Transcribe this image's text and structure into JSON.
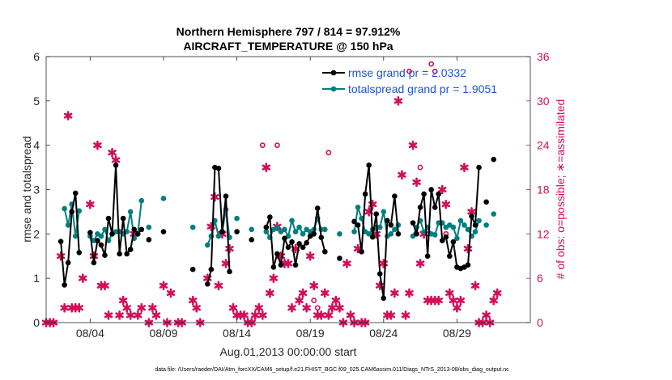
{
  "chart_data": {
    "type": "line",
    "title_line1": "Northern Hemisphere 797 / 814 = 97.912%",
    "title_line2": "AIRCRAFT_TEMPERATURE @ 150 hPa",
    "xlabel": "Aug.01,2013 00:00:00 start",
    "ylabel_left": "rmse and totalspread",
    "ylabel_right": "# of obs: o=possible; ∗=assimilated",
    "footer": "data file: /Users/raeder/DAI/Atm_forcXX/CAM6_setup/f.e21.FHIST_BGC.f09_025.CAM6assim.011/Diags_NTrS_2013-08/obs_diag_output.nc",
    "xlim": [
      1,
      34
    ],
    "ylim_left": [
      0,
      6
    ],
    "ylim_right": [
      0,
      36
    ],
    "x_ticks": [
      4,
      9,
      14,
      19,
      24,
      29
    ],
    "x_tick_labels": [
      "08/04",
      "08/09",
      "08/14",
      "08/19",
      "08/24",
      "08/29"
    ],
    "y_left_ticks": [
      0,
      1,
      2,
      3,
      4,
      5,
      6
    ],
    "y_right_ticks": [
      0,
      6,
      12,
      18,
      24,
      30,
      36
    ],
    "colors": {
      "rmse": "#000000",
      "spread": "#007f7f",
      "obs": "#d40e5a",
      "axis_right": "#d40e5a",
      "legend_text": "#1a55d6"
    },
    "legend": [
      {
        "name": "rmse grand pr = 2.0332",
        "color": "#000000"
      },
      {
        "name": "totalspread grand pr = 1.9051",
        "color": "#007f7f"
      }
    ],
    "series": [
      {
        "name": "rmse",
        "x": [
          2,
          2.25,
          2.5,
          2.75,
          3,
          3.25,
          4,
          4.25,
          4.5,
          4.75,
          5,
          5.25,
          5.5,
          5.75,
          6,
          6.25,
          6.5,
          6.75,
          7,
          7.25,
          7.5,
          8,
          9,
          11,
          12,
          12.25,
          12.5,
          12.75,
          13,
          13.25,
          13.5,
          14,
          15,
          16,
          16.25,
          16.5,
          16.75,
          17,
          17.25,
          17.5,
          17.75,
          18,
          18.25,
          18.5,
          18.75,
          19,
          19.25,
          19.5,
          19.75,
          20,
          21,
          22,
          22.25,
          22.5,
          22.75,
          23,
          23.25,
          23.5,
          23.75,
          24,
          24.25,
          24.5,
          24.75,
          25,
          26,
          26.25,
          26.5,
          26.75,
          27,
          27.25,
          27.5,
          27.75,
          28,
          28.25,
          28.5,
          28.75,
          29,
          29.25,
          29.5,
          29.75,
          30,
          30.25,
          30.5,
          31,
          31.5
        ],
        "y": [
          1.83,
          0.85,
          1.35,
          2.5,
          2.92,
          1.58,
          2.03,
          1.35,
          1.85,
          1.75,
          1.52,
          2.35,
          2.0,
          3.55,
          1.55,
          2.35,
          1.55,
          1.65,
          2.1,
          2.0,
          2.1,
          1.87,
          2.05,
          1.2,
          0.87,
          1.2,
          3.5,
          3.48,
          2.05,
          2.85,
          1.15,
          2.05,
          1.87,
          2.15,
          2.38,
          1.25,
          1.55,
          1.3,
          1.9,
          1.7,
          1.82,
          1.3,
          1.78,
          1.7,
          1.8,
          1.95,
          2.0,
          2.58,
          1.92,
          1.6,
          1.45,
          2.28,
          2.2,
          1.6,
          2.9,
          3.55,
          1.93,
          2.45,
          1.1,
          0.55,
          2.3,
          2.2,
          2.85,
          2.0,
          2.25,
          2.0,
          2.6,
          2.9,
          1.5,
          3.0,
          2.6,
          2.9,
          1.85,
          1.93,
          1.5,
          1.82,
          1.25,
          1.22,
          1.25,
          1.3,
          2.4,
          2.2,
          3.5,
          2.72,
          3.68
        ]
      },
      {
        "name": "totalspread",
        "x": [
          2.25,
          2.5,
          2.75,
          3,
          3.25,
          4,
          4.25,
          4.5,
          4.75,
          5,
          5.25,
          5.5,
          5.75,
          6,
          6.25,
          6.5,
          6.75,
          7,
          7.25,
          7.5,
          8,
          9,
          11,
          12,
          12.25,
          12.5,
          12.75,
          13,
          13.25,
          13.5,
          14,
          15,
          16,
          16.25,
          16.5,
          16.75,
          17,
          17.25,
          17.5,
          17.75,
          18,
          18.25,
          18.5,
          18.75,
          19,
          19.25,
          19.5,
          19.75,
          20,
          21,
          22,
          22.25,
          22.5,
          22.75,
          23,
          23.25,
          23.5,
          23.75,
          24,
          24.25,
          24.5,
          24.75,
          25,
          26,
          26.25,
          26.5,
          26.75,
          27,
          27.25,
          27.5,
          27.75,
          28,
          28.25,
          28.5,
          28.75,
          29,
          29.25,
          29.5,
          29.75,
          30,
          30.25,
          30.5,
          31,
          31.5
        ],
        "y": [
          2.57,
          2.2,
          2.67,
          1.95,
          2.52,
          1.95,
          1.85,
          2.0,
          1.95,
          2.1,
          1.85,
          2.0,
          2.05,
          2.05,
          2.0,
          2.05,
          2.5,
          1.9,
          2.0,
          2.75,
          2.15,
          2.8,
          2.15,
          1.75,
          1.95,
          2.3,
          1.95,
          2.05,
          2.55,
          1.92,
          2.35,
          2.1,
          2.05,
          1.92,
          2.1,
          2.15,
          2.05,
          2.1,
          1.95,
          2.3,
          2.05,
          2.15,
          2.0,
          2.1,
          2.05,
          2.1,
          2.35,
          2.1,
          2.1,
          2.0,
          2.05,
          2.6,
          2.35,
          2.05,
          2.0,
          2.1,
          2.15,
          2.15,
          2.5,
          1.95,
          2.0,
          2.1,
          2.2,
          1.95,
          2.15,
          2.3,
          2.05,
          2.15,
          2.0,
          1.98,
          2.25,
          2.25,
          2.15,
          2.2,
          2.15,
          1.9,
          2.3,
          2.2,
          2.1,
          1.95,
          2.05,
          2.3,
          2.2,
          2.45
        ]
      },
      {
        "name": "obs_assimilated",
        "x": [
          1,
          1.25,
          1.5,
          2,
          2.25,
          2.5,
          2.75,
          3,
          3.25,
          3.5,
          4,
          4.25,
          4.5,
          4.75,
          5,
          5.25,
          5.5,
          5.75,
          6,
          6.25,
          6.5,
          6.75,
          7,
          7.25,
          7.5,
          8,
          8.25,
          8.5,
          9,
          9.25,
          9.5,
          10,
          10.25,
          11,
          11.25,
          11.5,
          12,
          12.25,
          12.5,
          12.75,
          13,
          13.25,
          13.5,
          13.75,
          14,
          14.25,
          14.5,
          14.75,
          15,
          15.25,
          15.5,
          15.75,
          16,
          16.25,
          16.5,
          16.75,
          17,
          17.25,
          17.5,
          17.75,
          18,
          18.25,
          18.5,
          18.75,
          19,
          19.25,
          19.5,
          19.75,
          20,
          20.25,
          20.5,
          20.75,
          21,
          21.25,
          21.5,
          21.75,
          22,
          22.25,
          22.5,
          22.75,
          23,
          23.25,
          23.5,
          23.75,
          24,
          24.25,
          24.5,
          24.75,
          25,
          25.25,
          25.5,
          25.75,
          26,
          26.25,
          26.5,
          26.75,
          27,
          27.25,
          27.5,
          27.75,
          28,
          28.25,
          28.5,
          28.75,
          29,
          29.25,
          29.5,
          29.75,
          30,
          30.25,
          30.5,
          30.75,
          31,
          31.25,
          31.5,
          31.75
        ],
        "y": [
          0,
          0,
          0,
          9,
          2,
          28,
          2,
          2,
          2,
          6,
          16,
          9,
          24,
          5,
          5,
          1,
          23,
          22,
          1,
          3,
          2,
          1,
          12,
          1,
          2,
          0,
          2,
          1,
          5,
          0,
          4,
          0,
          0,
          3,
          2,
          0,
          6,
          13,
          17,
          5,
          12,
          8,
          10,
          2,
          1,
          1,
          1,
          0,
          0,
          1,
          2,
          1,
          21,
          4,
          6,
          13,
          9,
          8,
          8,
          2,
          10,
          3,
          4,
          2,
          9,
          5,
          1,
          1,
          4,
          1,
          2,
          3,
          2,
          0,
          8,
          1,
          0,
          10,
          0,
          0,
          15,
          16,
          12,
          5,
          8,
          1,
          1,
          4,
          30,
          20,
          1,
          4,
          24,
          19,
          8,
          12,
          3,
          3,
          3,
          3,
          18,
          16,
          4,
          3,
          2,
          3,
          21,
          10,
          15,
          5,
          0,
          0,
          1,
          0,
          3,
          4
        ]
      },
      {
        "name": "obs_possible",
        "x": [
          15.75,
          16.75,
          19.25,
          19.5,
          20.25,
          25.75,
          26.5,
          27.25,
          27.5,
          28.25
        ],
        "y": [
          24,
          24,
          3,
          2,
          23,
          34,
          21,
          35,
          34,
          12
        ]
      }
    ]
  }
}
